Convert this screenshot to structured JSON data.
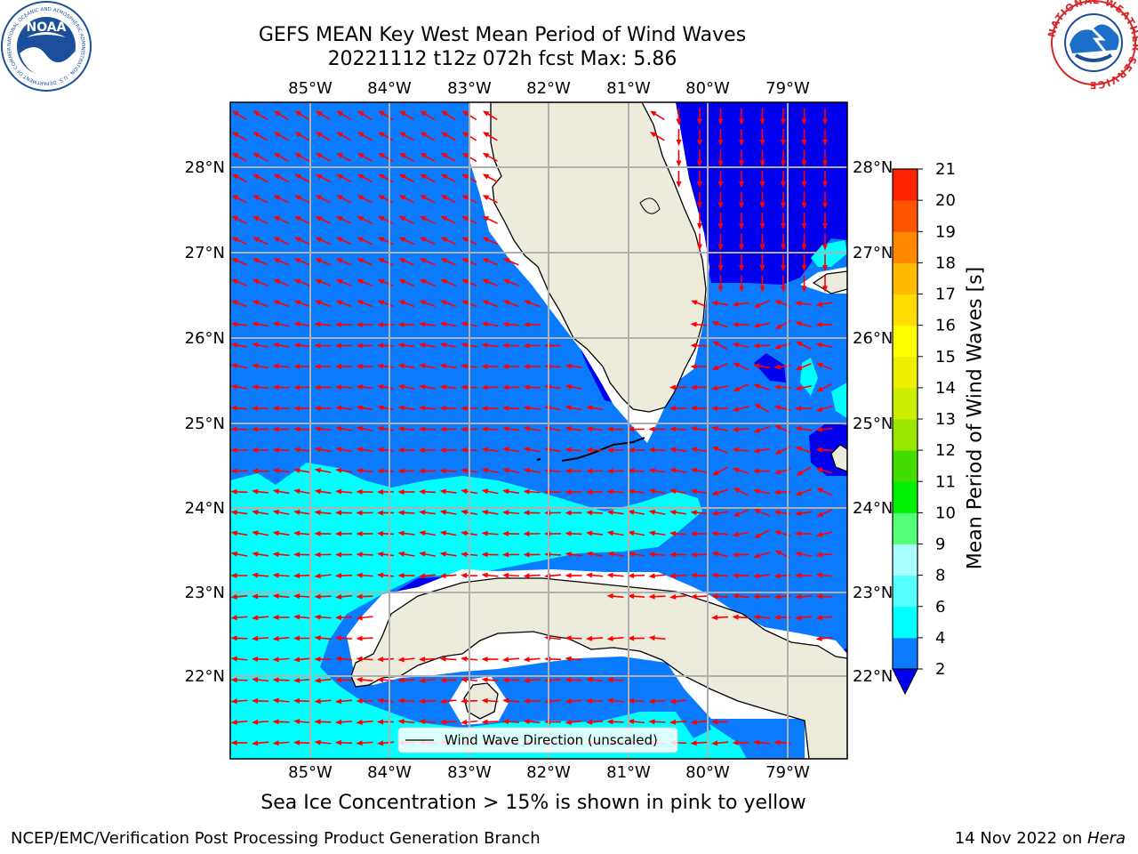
{
  "header": {
    "title_line1": "GEFS MEAN Key West Mean Period of Wind Waves",
    "title_line2": "20221112 t12z 072h fcst   Max: 5.86"
  },
  "logos": {
    "noaa_text": "NOAA",
    "noaa_ring": "NATIONAL OCEANIC AND ATMOSPHERIC ADMINISTRATION · U.S. DEPARTMENT OF COMMERCE",
    "nws_ring": "NATIONAL WEATHER SERVICE"
  },
  "map": {
    "lon_labels": [
      "85°W",
      "84°W",
      "83°W",
      "82°W",
      "81°W",
      "80°W",
      "79°W"
    ],
    "lat_labels": [
      "28°N",
      "27°N",
      "26°N",
      "25°N",
      "24°N",
      "23°N",
      "22°N"
    ],
    "legend_label": "Wind Wave Direction (unscaled)",
    "colors": {
      "ocean_main": "#0a7bff",
      "ocean_cyan": "#00ffff",
      "ocean_dark": "#0000ee",
      "land": "#ecebdc",
      "arrow": "#ff0000",
      "grid": "#b0b0b0"
    }
  },
  "colorbar": {
    "label": "Mean Period of Wind Waves [s]",
    "ticks": [
      "2",
      "4",
      "6",
      "8",
      "9",
      "10",
      "11",
      "12",
      "13",
      "14",
      "15",
      "16",
      "17",
      "18",
      "19",
      "20",
      "21"
    ],
    "colors": [
      "#0a7bff",
      "#00ffff",
      "#55ffff",
      "#aaffff",
      "#55ff77",
      "#00ee00",
      "#44dd00",
      "#99e600",
      "#ccee00",
      "#eeee00",
      "#ffff00",
      "#ffdd00",
      "#ffbb00",
      "#ff8800",
      "#ff5500",
      "#ff2200"
    ],
    "under_color": "#0000ee"
  },
  "notes": {
    "ice": "Sea Ice Concentration > 15% is shown in pink to yellow"
  },
  "footer": {
    "left": "NCEP/EMC/Verification Post Processing Product Generation Branch",
    "date": "14 Nov 2022 on ",
    "machine": "Hera"
  }
}
